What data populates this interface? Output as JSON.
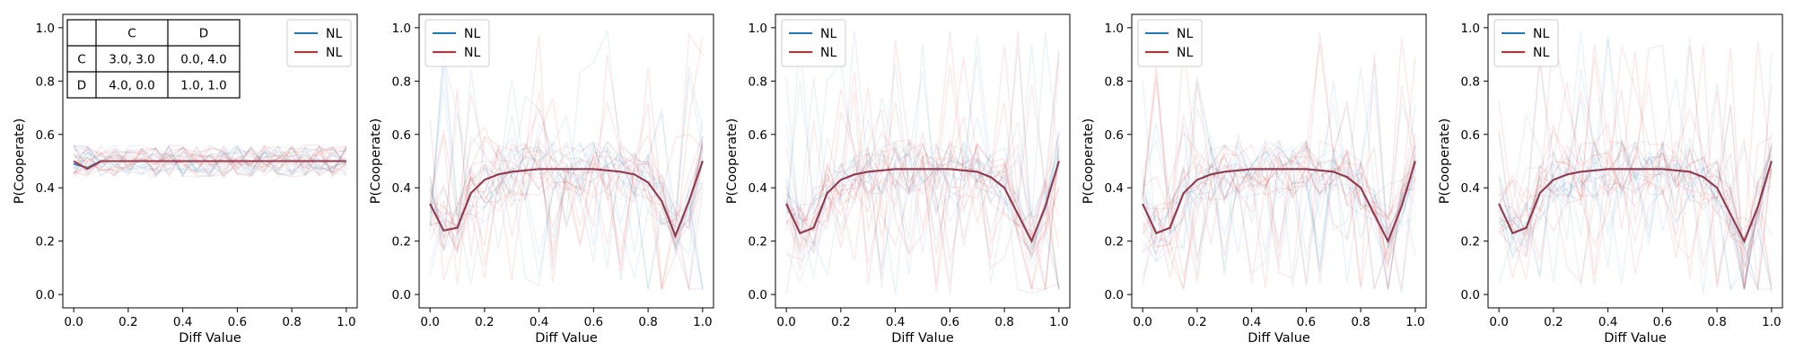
{
  "chart_data": [
    {
      "type": "line",
      "xlabel": "Diff Value",
      "ylabel": "P(Cooperate)",
      "xlim": [
        -0.04,
        1.04
      ],
      "ylim": [
        -0.05,
        1.05
      ],
      "xticks": [
        "0.0",
        "0.2",
        "0.4",
        "0.6",
        "0.8",
        "1.0"
      ],
      "yticks": [
        "0.0",
        "0.2",
        "0.4",
        "0.6",
        "0.8",
        "1.0"
      ],
      "legend": {
        "position": "upper right",
        "entries": [
          {
            "label": "NL",
            "color": "#1f77b4"
          },
          {
            "label": "NL",
            "color": "#d62728"
          }
        ]
      },
      "payoff_table": {
        "col_headers": [
          "C",
          "D"
        ],
        "rows": [
          {
            "label": "C",
            "cells": [
              "3.0, 3.0",
              "0.0, 4.0"
            ]
          },
          {
            "label": "D",
            "cells": [
              "4.0, 0.0",
              "1.0, 1.0"
            ]
          }
        ]
      },
      "x": [
        0.0,
        0.05,
        0.1,
        0.15,
        0.2,
        0.25,
        0.3,
        0.35,
        0.4,
        0.45,
        0.5,
        0.55,
        0.6,
        0.65,
        0.7,
        0.75,
        0.8,
        0.85,
        0.9,
        0.95,
        1.0
      ],
      "series": [
        {
          "color": "#1f77b4",
          "values": [
            0.49,
            0.475,
            0.5,
            0.5,
            0.5,
            0.5,
            0.5,
            0.5,
            0.5,
            0.5,
            0.5,
            0.5,
            0.5,
            0.5,
            0.5,
            0.5,
            0.5,
            0.5,
            0.5,
            0.5,
            0.5
          ]
        },
        {
          "color": "#d62728",
          "values": [
            0.5,
            0.47,
            0.5,
            0.5,
            0.5,
            0.5,
            0.5,
            0.5,
            0.5,
            0.5,
            0.5,
            0.5,
            0.5,
            0.5,
            0.5,
            0.5,
            0.5,
            0.5,
            0.5,
            0.5,
            0.5
          ]
        }
      ]
    },
    {
      "type": "line",
      "xlabel": "Diff Value",
      "ylabel": "P(Cooperate)",
      "xlim": [
        -0.04,
        1.04
      ],
      "ylim": [
        -0.05,
        1.05
      ],
      "xticks": [
        "0.0",
        "0.2",
        "0.4",
        "0.6",
        "0.8",
        "1.0"
      ],
      "yticks": [
        "0.0",
        "0.2",
        "0.4",
        "0.6",
        "0.8",
        "1.0"
      ],
      "legend": {
        "position": "upper left",
        "entries": [
          {
            "label": "NL",
            "color": "#1f77b4"
          },
          {
            "label": "NL",
            "color": "#d62728"
          }
        ]
      },
      "x": [
        0.0,
        0.05,
        0.1,
        0.15,
        0.2,
        0.25,
        0.3,
        0.35,
        0.4,
        0.45,
        0.5,
        0.55,
        0.6,
        0.65,
        0.7,
        0.75,
        0.8,
        0.85,
        0.9,
        0.95,
        1.0
      ],
      "series": [
        {
          "color": "#1f77b4",
          "values": [
            0.34,
            0.24,
            0.25,
            0.38,
            0.43,
            0.45,
            0.46,
            0.465,
            0.47,
            0.47,
            0.47,
            0.47,
            0.47,
            0.465,
            0.46,
            0.45,
            0.42,
            0.35,
            0.22,
            0.35,
            0.5
          ]
        },
        {
          "color": "#d62728",
          "values": [
            0.34,
            0.24,
            0.25,
            0.38,
            0.43,
            0.45,
            0.46,
            0.465,
            0.47,
            0.47,
            0.47,
            0.47,
            0.47,
            0.465,
            0.46,
            0.45,
            0.42,
            0.35,
            0.22,
            0.35,
            0.5
          ]
        }
      ]
    },
    {
      "type": "line",
      "xlabel": "Diff Value",
      "ylabel": "P(Cooperate)",
      "xlim": [
        -0.04,
        1.04
      ],
      "ylim": [
        -0.05,
        1.05
      ],
      "xticks": [
        "0.0",
        "0.2",
        "0.4",
        "0.6",
        "0.8",
        "1.0"
      ],
      "yticks": [
        "0.0",
        "0.2",
        "0.4",
        "0.6",
        "0.8",
        "1.0"
      ],
      "legend": {
        "position": "upper left",
        "entries": [
          {
            "label": "NL",
            "color": "#1f77b4"
          },
          {
            "label": "NL",
            "color": "#d62728"
          }
        ]
      },
      "x": [
        0.0,
        0.05,
        0.1,
        0.15,
        0.2,
        0.25,
        0.3,
        0.35,
        0.4,
        0.45,
        0.5,
        0.55,
        0.6,
        0.65,
        0.7,
        0.75,
        0.8,
        0.85,
        0.9,
        0.95,
        1.0
      ],
      "series": [
        {
          "color": "#1f77b4",
          "values": [
            0.34,
            0.23,
            0.25,
            0.38,
            0.43,
            0.45,
            0.46,
            0.465,
            0.47,
            0.47,
            0.47,
            0.47,
            0.47,
            0.465,
            0.46,
            0.44,
            0.4,
            0.3,
            0.2,
            0.33,
            0.5
          ]
        },
        {
          "color": "#d62728",
          "values": [
            0.34,
            0.23,
            0.25,
            0.38,
            0.43,
            0.45,
            0.46,
            0.465,
            0.47,
            0.47,
            0.47,
            0.47,
            0.47,
            0.465,
            0.46,
            0.44,
            0.4,
            0.3,
            0.2,
            0.33,
            0.5
          ]
        }
      ]
    },
    {
      "type": "line",
      "xlabel": "Diff Value",
      "ylabel": "P(Cooperate)",
      "xlim": [
        -0.04,
        1.04
      ],
      "ylim": [
        -0.05,
        1.05
      ],
      "xticks": [
        "0.0",
        "0.2",
        "0.4",
        "0.6",
        "0.8",
        "1.0"
      ],
      "yticks": [
        "0.0",
        "0.2",
        "0.4",
        "0.6",
        "0.8",
        "1.0"
      ],
      "legend": {
        "position": "upper left",
        "entries": [
          {
            "label": "NL",
            "color": "#1f77b4"
          },
          {
            "label": "NL",
            "color": "#d62728"
          }
        ]
      },
      "x": [
        0.0,
        0.05,
        0.1,
        0.15,
        0.2,
        0.25,
        0.3,
        0.35,
        0.4,
        0.45,
        0.5,
        0.55,
        0.6,
        0.65,
        0.7,
        0.75,
        0.8,
        0.85,
        0.9,
        0.95,
        1.0
      ],
      "series": [
        {
          "color": "#1f77b4",
          "values": [
            0.34,
            0.23,
            0.25,
            0.38,
            0.43,
            0.45,
            0.46,
            0.465,
            0.47,
            0.47,
            0.47,
            0.47,
            0.47,
            0.465,
            0.46,
            0.44,
            0.4,
            0.3,
            0.2,
            0.33,
            0.5
          ]
        },
        {
          "color": "#d62728",
          "values": [
            0.34,
            0.23,
            0.25,
            0.38,
            0.43,
            0.45,
            0.46,
            0.465,
            0.47,
            0.47,
            0.47,
            0.47,
            0.47,
            0.465,
            0.46,
            0.44,
            0.4,
            0.3,
            0.2,
            0.33,
            0.5
          ]
        }
      ]
    },
    {
      "type": "line",
      "xlabel": "Diff Value",
      "ylabel": "P(Cooperate)",
      "xlim": [
        -0.04,
        1.04
      ],
      "ylim": [
        -0.05,
        1.05
      ],
      "xticks": [
        "0.0",
        "0.2",
        "0.4",
        "0.6",
        "0.8",
        "1.0"
      ],
      "yticks": [
        "0.0",
        "0.2",
        "0.4",
        "0.6",
        "0.8",
        "1.0"
      ],
      "legend": {
        "position": "upper left",
        "entries": [
          {
            "label": "NL",
            "color": "#1f77b4"
          },
          {
            "label": "NL",
            "color": "#d62728"
          }
        ]
      },
      "x": [
        0.0,
        0.05,
        0.1,
        0.15,
        0.2,
        0.25,
        0.3,
        0.35,
        0.4,
        0.45,
        0.5,
        0.55,
        0.6,
        0.65,
        0.7,
        0.75,
        0.8,
        0.85,
        0.9,
        0.95,
        1.0
      ],
      "series": [
        {
          "color": "#1f77b4",
          "values": [
            0.34,
            0.23,
            0.25,
            0.38,
            0.43,
            0.45,
            0.46,
            0.465,
            0.47,
            0.47,
            0.47,
            0.47,
            0.47,
            0.465,
            0.46,
            0.44,
            0.4,
            0.3,
            0.2,
            0.33,
            0.5
          ]
        },
        {
          "color": "#d62728",
          "values": [
            0.34,
            0.23,
            0.25,
            0.38,
            0.43,
            0.45,
            0.46,
            0.465,
            0.47,
            0.47,
            0.47,
            0.47,
            0.47,
            0.465,
            0.46,
            0.44,
            0.4,
            0.3,
            0.2,
            0.33,
            0.5
          ]
        }
      ]
    }
  ]
}
